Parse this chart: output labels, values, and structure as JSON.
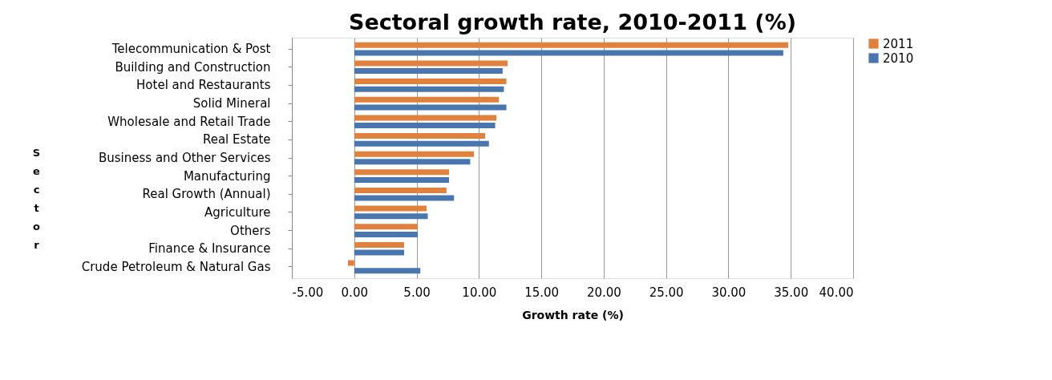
{
  "chart_data": {
    "type": "bar",
    "orientation": "horizontal",
    "title": "Sectoral growth rate, 2010-2011 (%)",
    "xlabel": "Growth rate (%)",
    "ylabel": "Sector",
    "categories": [
      "Telecommunication & Post",
      "Building and Construction",
      "Hotel and Restaurants",
      "Solid Mineral",
      "Wholesale and Retail Trade",
      "Real Estate",
      "Business and Other Services",
      "Manufacturing",
      "Real Growth (Annual)",
      "Agriculture",
      "Others",
      "Finance & Insurance",
      "Crude Petroleum & Natural Gas"
    ],
    "series": [
      {
        "name": "2011",
        "color": "#e0823d",
        "values": [
          34.8,
          12.3,
          12.2,
          11.6,
          11.4,
          10.5,
          9.6,
          7.6,
          7.4,
          5.8,
          5.1,
          4.0,
          -0.5
        ]
      },
      {
        "name": "2010",
        "color": "#4a76ae",
        "values": [
          34.4,
          11.9,
          12.0,
          12.2,
          11.3,
          10.8,
          9.3,
          7.6,
          8.0,
          5.9,
          5.1,
          4.0,
          5.3
        ]
      }
    ],
    "xlim": [
      -5,
      40
    ],
    "xticks": [
      {
        "value": -5,
        "label": "-5.00"
      },
      {
        "value": 0,
        "label": "0.00"
      },
      {
        "value": 5,
        "label": "5.00"
      },
      {
        "value": 10,
        "label": "10.00"
      },
      {
        "value": 15,
        "label": "15.00"
      },
      {
        "value": 20,
        "label": "20.00"
      },
      {
        "value": 25,
        "label": "25.00"
      },
      {
        "value": 30,
        "label": "30.00"
      },
      {
        "value": 35,
        "label": "35.00"
      },
      {
        "value": 40,
        "label": "40.00"
      }
    ],
    "grid": "x",
    "legend": "right"
  }
}
